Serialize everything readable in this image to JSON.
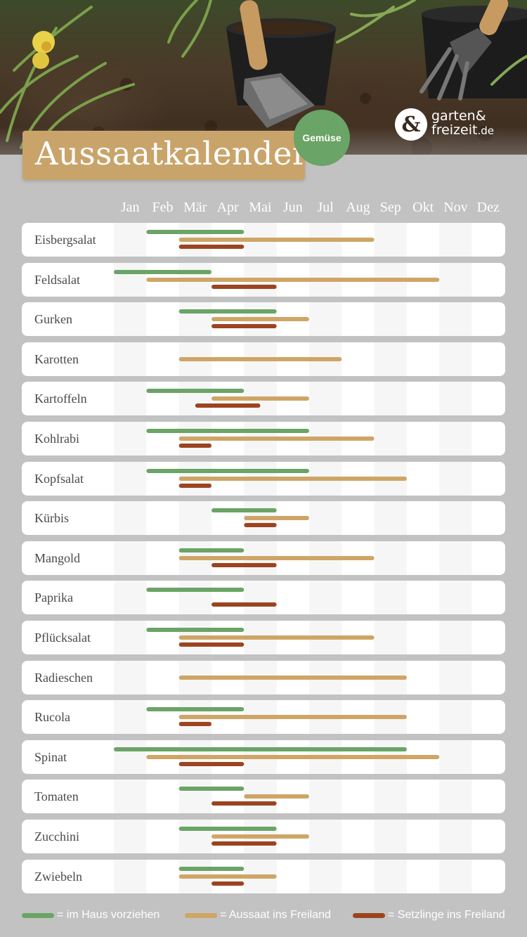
{
  "header": {
    "title": "Aussaatkalender",
    "badge": "Gemüse",
    "logo": {
      "line1": "garten&",
      "line2": "freizeit",
      "tld": ".de"
    }
  },
  "colors": {
    "background": "#c2c2c2",
    "title_box": "#c9a46a",
    "badge": "#6aa466",
    "vorziehen": "#6aa466",
    "freiland": "#cfa566",
    "setzlinge": "#9c4420",
    "column_shade": "#f6f6f6"
  },
  "legend": [
    {
      "key": "vorziehen",
      "label": "= im Haus vorziehen"
    },
    {
      "key": "freiland",
      "label": "= Aussaat ins Freiland"
    },
    {
      "key": "setzlinge",
      "label": "= Setzlinge ins Freiland"
    }
  ],
  "chart_data": {
    "type": "bar",
    "subtype": "gantt",
    "title": "Aussaatkalender",
    "x_categories": [
      "Jan",
      "Feb",
      "Mär",
      "Apr",
      "Mai",
      "Jun",
      "Jul",
      "Aug",
      "Sep",
      "Okt",
      "Nov",
      "Dez"
    ],
    "series_keys": [
      "vorziehen",
      "freiland",
      "setzlinge"
    ],
    "rows": [
      {
        "name": "Eisbergsalat",
        "vorziehen": [
          2,
          4
        ],
        "freiland": [
          3,
          8
        ],
        "setzlinge": [
          3,
          4
        ]
      },
      {
        "name": "Feldsalat",
        "vorziehen": [
          1,
          3
        ],
        "freiland": [
          2,
          10
        ],
        "setzlinge": [
          4,
          5
        ]
      },
      {
        "name": "Gurken",
        "vorziehen": [
          3,
          5
        ],
        "freiland": [
          4,
          6
        ],
        "setzlinge": [
          4,
          5
        ]
      },
      {
        "name": "Karotten",
        "vorziehen": null,
        "freiland": [
          3,
          7
        ],
        "setzlinge": null
      },
      {
        "name": "Kartoffeln",
        "vorziehen": [
          2,
          4
        ],
        "freiland": [
          4,
          6
        ],
        "setzlinge": [
          3.5,
          4.5
        ]
      },
      {
        "name": "Kohlrabi",
        "vorziehen": [
          2,
          6
        ],
        "freiland": [
          3,
          8
        ],
        "setzlinge": [
          3,
          3
        ]
      },
      {
        "name": "Kopfsalat",
        "vorziehen": [
          2,
          6
        ],
        "freiland": [
          3,
          9
        ],
        "setzlinge": [
          3,
          3
        ]
      },
      {
        "name": "Kürbis",
        "vorziehen": [
          4,
          5
        ],
        "freiland": [
          5,
          6
        ],
        "setzlinge": [
          5,
          5
        ]
      },
      {
        "name": "Mangold",
        "vorziehen": [
          3,
          4
        ],
        "freiland": [
          3,
          8
        ],
        "setzlinge": [
          4,
          5
        ]
      },
      {
        "name": "Paprika",
        "vorziehen": [
          2,
          4
        ],
        "freiland": null,
        "setzlinge": [
          4,
          5
        ]
      },
      {
        "name": "Pflücksalat",
        "vorziehen": [
          2,
          4
        ],
        "freiland": [
          3,
          8
        ],
        "setzlinge": [
          3,
          4
        ]
      },
      {
        "name": "Radieschen",
        "vorziehen": null,
        "freiland": [
          3,
          9
        ],
        "setzlinge": null
      },
      {
        "name": "Rucola",
        "vorziehen": [
          2,
          4
        ],
        "freiland": [
          3,
          9
        ],
        "setzlinge": [
          3,
          3
        ]
      },
      {
        "name": "Spinat",
        "vorziehen": [
          1,
          9
        ],
        "freiland": [
          2,
          10
        ],
        "setzlinge": [
          3,
          4
        ]
      },
      {
        "name": "Tomaten",
        "vorziehen": [
          3,
          4
        ],
        "freiland": [
          5,
          6
        ],
        "setzlinge": [
          4,
          5
        ]
      },
      {
        "name": "Zucchini",
        "vorziehen": [
          3,
          5
        ],
        "freiland": [
          4,
          6
        ],
        "setzlinge": [
          4,
          5
        ]
      },
      {
        "name": "Zwiebeln",
        "vorziehen": [
          3,
          4
        ],
        "freiland": [
          3,
          5
        ],
        "setzlinge": [
          4,
          4
        ]
      }
    ]
  }
}
